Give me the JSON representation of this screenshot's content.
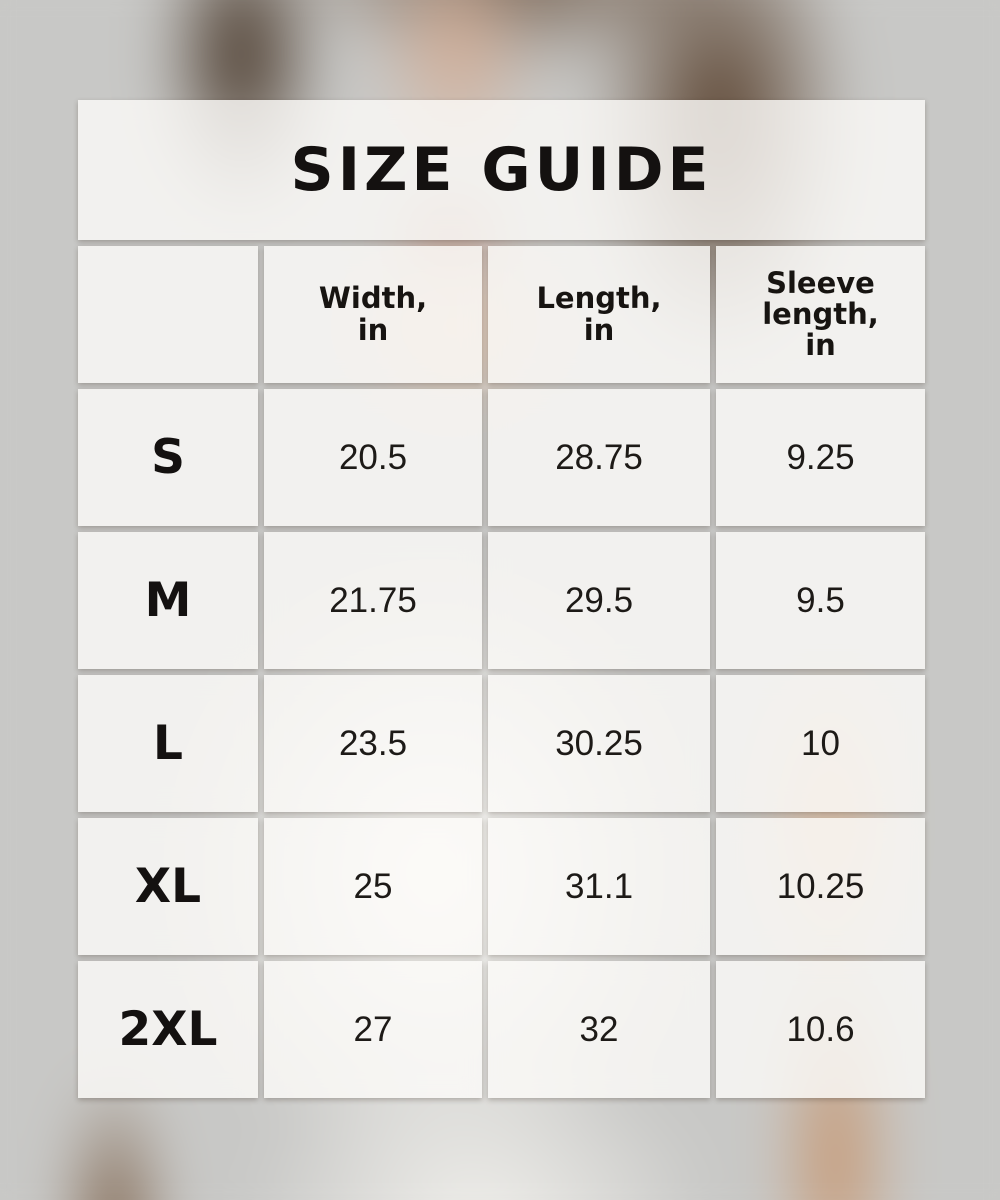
{
  "title": "SIZE GUIDE",
  "chart_data": {
    "type": "table",
    "title": "SIZE GUIDE",
    "units": "in",
    "headers": [
      "",
      "Width,\nin",
      "Length,\nin",
      "Sleeve\nlength,\nin"
    ],
    "rows": [
      {
        "size": "S",
        "width": "20.5",
        "length": "28.75",
        "sleeve": "9.25"
      },
      {
        "size": "M",
        "width": "21.75",
        "length": "29.5",
        "sleeve": "9.5"
      },
      {
        "size": "L",
        "width": "23.5",
        "length": "30.25",
        "sleeve": "10"
      },
      {
        "size": "XL",
        "width": "25",
        "length": "31.1",
        "sleeve": "10.25"
      },
      {
        "size": "2XL",
        "width": "27",
        "length": "32",
        "sleeve": "10.6"
      }
    ]
  },
  "colors": {
    "text": "#171411",
    "cell_background": "#edecea",
    "backdrop_gray": "#c8c8c6"
  }
}
